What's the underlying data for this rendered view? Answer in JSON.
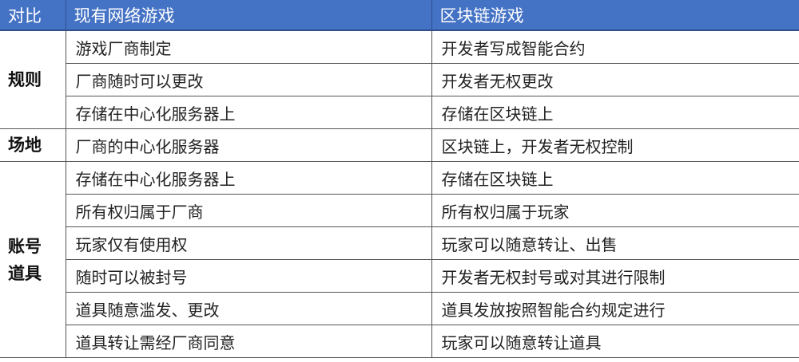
{
  "header": {
    "col1": "对比",
    "col2": "现有网络游戏",
    "col3": "区块链游戏"
  },
  "groups": {
    "rules": "规则",
    "venue": "场地",
    "account_line1": "账号",
    "account_line2": "道具"
  },
  "rows": [
    {
      "traditional": "游戏厂商制定",
      "blockchain": "开发者写成智能合约"
    },
    {
      "traditional": "厂商随时可以更改",
      "blockchain": "开发者无权更改"
    },
    {
      "traditional": "存储在中心化服务器上",
      "blockchain": "存储在区块链上"
    },
    {
      "traditional": "厂商的中心化服务器",
      "blockchain": "区块链上，开发者无权控制"
    },
    {
      "traditional": "存储在中心化服务器上",
      "blockchain": "存储在区块链上"
    },
    {
      "traditional": "所有权归属于厂商",
      "blockchain": "所有权归属于玩家"
    },
    {
      "traditional": "玩家仅有使用权",
      "blockchain": "玩家可以随意转让、出售"
    },
    {
      "traditional": "随时可以被封号",
      "blockchain": "开发者无权封号或对其进行限制"
    },
    {
      "traditional": "道具随意滥发、更改",
      "blockchain": "道具发放按照智能合约规定进行"
    },
    {
      "traditional": "道具转让需经厂商同意",
      "blockchain": "玩家可以随意转让道具"
    }
  ],
  "colors": {
    "header_bg": "#4472c4",
    "header_text": "#ffffff"
  }
}
